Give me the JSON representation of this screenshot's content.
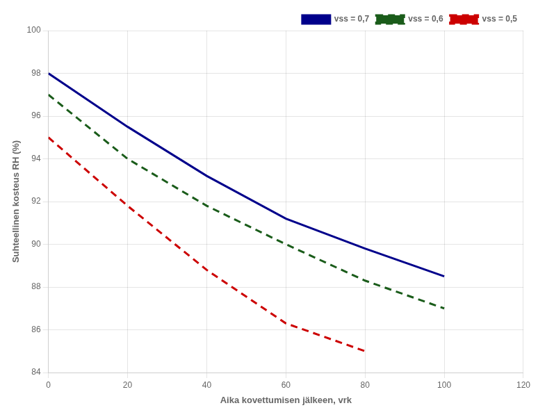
{
  "chart_data": {
    "type": "line",
    "xlabel": "Aika kovettumisen jälkeen, vrk",
    "ylabel": "Suhteellinen kosteus RH (%)",
    "xlim": [
      0,
      120
    ],
    "ylim": [
      84,
      100
    ],
    "xticks": [
      0,
      20,
      40,
      60,
      80,
      100,
      120
    ],
    "yticks": [
      84,
      86,
      88,
      90,
      92,
      94,
      96,
      98,
      100
    ],
    "series": [
      {
        "name": "vss = 0,7",
        "color": "#00008B",
        "line_style": "solid",
        "x": [
          0,
          20,
          40,
          60,
          80,
          100
        ],
        "values": [
          98.0,
          95.5,
          93.2,
          91.2,
          89.8,
          88.5
        ]
      },
      {
        "name": "vss = 0,6",
        "color": "#1A5C1A",
        "line_style": "dashed",
        "x": [
          0,
          20,
          40,
          60,
          80,
          100
        ],
        "values": [
          97.0,
          94.0,
          91.8,
          90.0,
          88.3,
          87.0
        ]
      },
      {
        "name": "vss = 0,5",
        "color": "#CC0000",
        "line_style": "dashed",
        "x": [
          0,
          20,
          40,
          60,
          80
        ],
        "values": [
          95.0,
          91.8,
          88.8,
          86.3,
          85.0
        ]
      }
    ],
    "grid": true,
    "legend": "upper right"
  }
}
